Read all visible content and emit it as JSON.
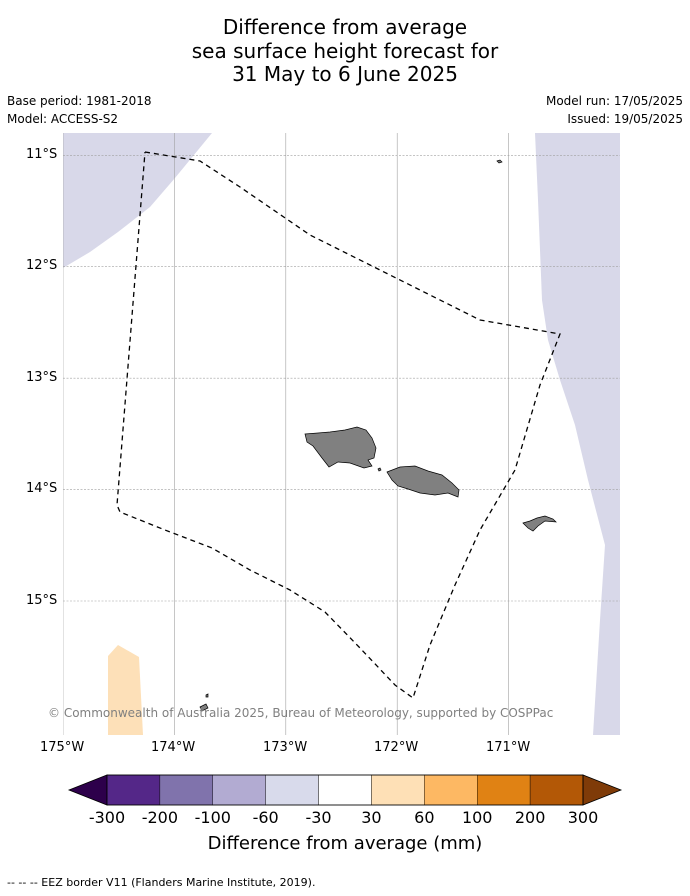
{
  "title": {
    "line1": "Difference from average",
    "line2": "sea surface height forecast for",
    "line3": "31 May to 6 June 2025"
  },
  "meta": {
    "base_period": "Base period: 1981-2018",
    "model": "Model: ACCESS-S2",
    "model_run": "Model run: 17/05/2025",
    "issued": "Issued: 19/05/2025"
  },
  "map": {
    "lon_range": [
      -175,
      -170
    ],
    "lat_range": [
      -16.2,
      -10.8
    ],
    "lat_ticks": [
      "11°S",
      "12°S",
      "13°S",
      "14°S",
      "15°S"
    ],
    "lon_ticks": [
      "175°W",
      "174°W",
      "173°W",
      "172°W",
      "171°W"
    ],
    "copyright": "© Commonwealth of Australia 2025, Bureau of Meteorology, supported by COSPPac",
    "colors": {
      "neg30_60": "#d8d8e9",
      "pos30_60": "#fde0b8",
      "land": "#808080",
      "eez": "#000000"
    }
  },
  "colorbar": {
    "title": "Difference from average (mm)",
    "labels": [
      "-300",
      "-200",
      "-100",
      "-60",
      "-30",
      "30",
      "60",
      "100",
      "200",
      "300"
    ],
    "colors": [
      "#2d004b",
      "#542788",
      "#8073ac",
      "#b2abd2",
      "#d8daeb",
      "#ffffff",
      "#fee0b6",
      "#fdb863",
      "#e08214",
      "#b35806",
      "#7f3b08"
    ]
  },
  "footnote": "-- -- -- EEZ border V11 (Flanders Marine Institute, 2019)."
}
